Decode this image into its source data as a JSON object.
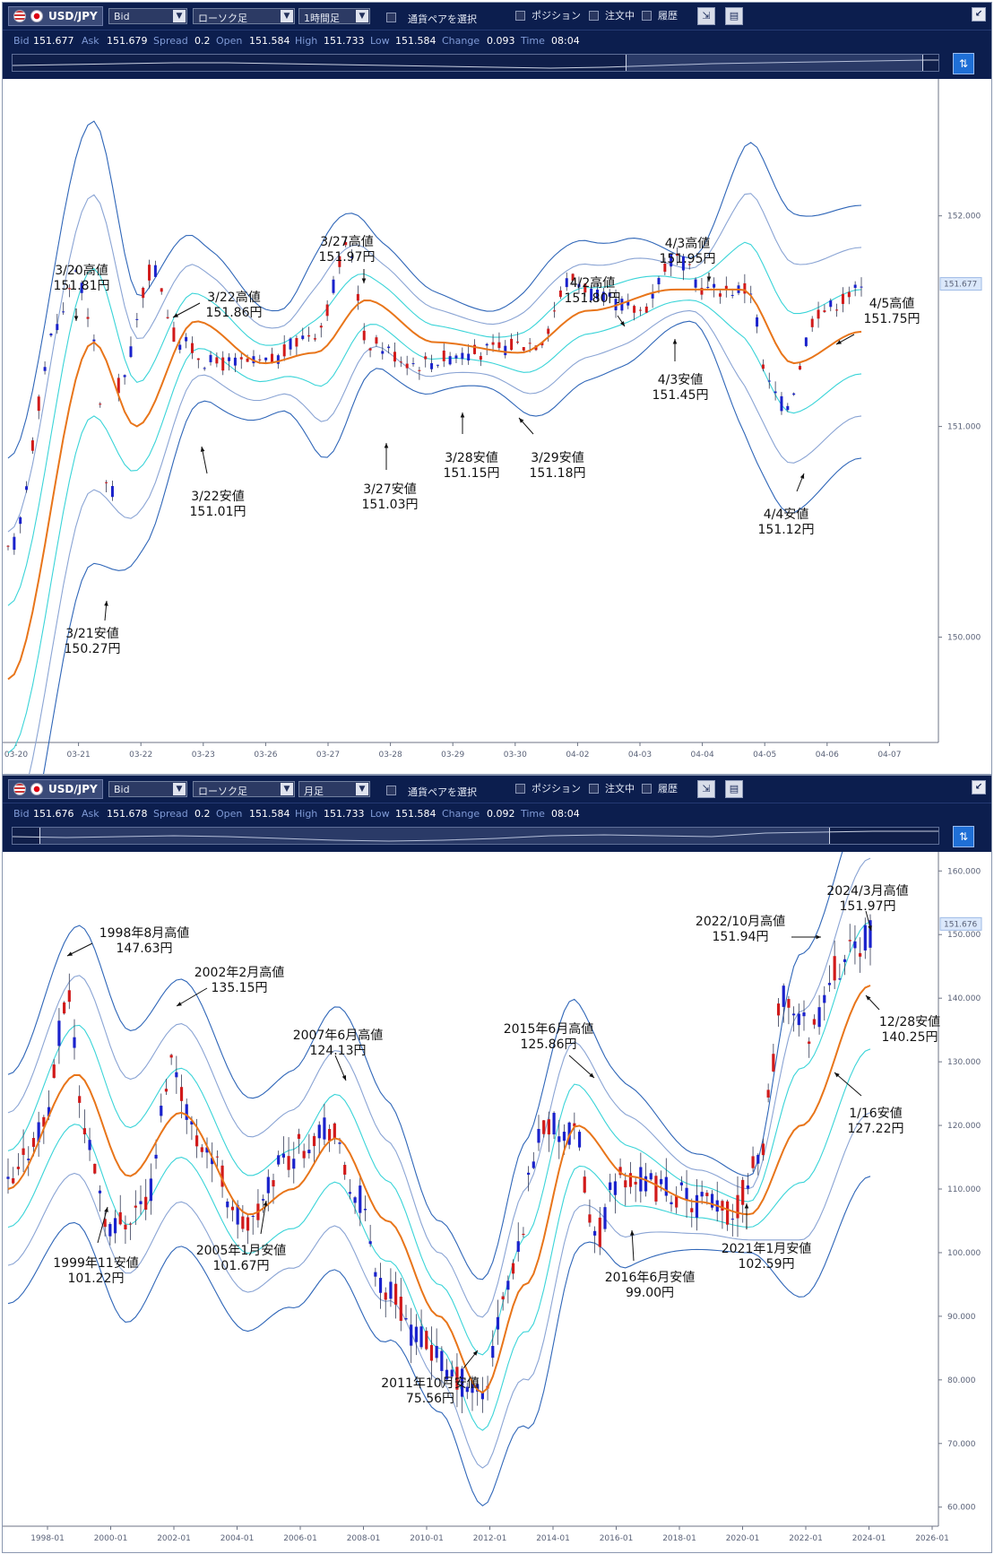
{
  "panels": [
    {
      "toolbar": {
        "pair": "USD/JPY",
        "price_type": "Bid",
        "chart_type": "ローソク足",
        "timeframe": "1時間足",
        "pair_select_label": "通貨ペアを選択",
        "position_label": "ポジション",
        "order_label": "注文中",
        "history_label": "履歴"
      },
      "quote": {
        "bid_label": "Bid",
        "bid": "151.677",
        "ask_label": "Ask",
        "ask": "151.679",
        "spread_label": "Spread",
        "spread": "0.2",
        "open_label": "Open",
        "open": "151.584",
        "high_label": "High",
        "high": "151.733",
        "low_label": "Low",
        "low": "151.584",
        "change_label": "Change",
        "change": "0.093",
        "time_label": "Time",
        "time": "08:04"
      },
      "chart_data": {
        "type": "candlestick",
        "instrument": "USD/JPY",
        "timeframe": "1時間足",
        "y_ticks": [
          "152.000",
          "151.000",
          "150.000"
        ],
        "y_tick_values": [
          152.0,
          151.0,
          150.0
        ],
        "ylim": [
          149.5,
          152.65
        ],
        "current_price_label": "151.677",
        "current_price": 151.677,
        "x_ticks": [
          "03-20",
          "03-21",
          "03-22",
          "03-23",
          "03-26",
          "03-27",
          "03-28",
          "03-29",
          "03-30",
          "04-02",
          "04-03",
          "04-04",
          "04-05",
          "04-06",
          "04-07"
        ],
        "annotations": [
          {
            "label": "3/20高値",
            "value": "151.81円"
          },
          {
            "label": "3/22高値",
            "value": "151.86円"
          },
          {
            "label": "3/27高値",
            "value": "151.97円"
          },
          {
            "label": "4/2高値",
            "value": "151.80円"
          },
          {
            "label": "4/3高値",
            "value": "151.95円"
          },
          {
            "label": "4/5高値",
            "value": "151.75円"
          },
          {
            "label": "3/21安値",
            "value": "150.27円"
          },
          {
            "label": "3/22安値",
            "value": "151.01円"
          },
          {
            "label": "3/27安値",
            "value": "151.03円"
          },
          {
            "label": "3/28安値",
            "value": "151.15円"
          },
          {
            "label": "3/29安値",
            "value": "151.18円"
          },
          {
            "label": "4/3安値",
            "value": "151.45円"
          },
          {
            "label": "4/4安値",
            "value": "151.12円"
          }
        ],
        "colors": {
          "up": "#d11a1a",
          "down": "#1a22cc",
          "ma": "#e8751a",
          "band1": "#3ad4d8",
          "band2": "#8aa4d4",
          "band3": "#2f66b8"
        }
      }
    },
    {
      "toolbar": {
        "pair": "USD/JPY",
        "price_type": "Bid",
        "chart_type": "ローソク足",
        "timeframe": "月足",
        "pair_select_label": "通貨ペアを選択",
        "position_label": "ポジション",
        "order_label": "注文中",
        "history_label": "履歴"
      },
      "quote": {
        "bid_label": "Bid",
        "bid": "151.676",
        "ask_label": "Ask",
        "ask": "151.678",
        "spread_label": "Spread",
        "spread": "0.2",
        "open_label": "Open",
        "open": "151.584",
        "high_label": "High",
        "high": "151.733",
        "low_label": "Low",
        "low": "151.584",
        "change_label": "Change",
        "change": "0.092",
        "time_label": "Time",
        "time": "08:04"
      },
      "chart_data": {
        "type": "candlestick",
        "instrument": "USD/JPY",
        "timeframe": "月足",
        "y_ticks": [
          "160.000",
          "150.000",
          "140.000",
          "130.000",
          "120.000",
          "110.000",
          "100.000",
          "90.000",
          "80.000",
          "70.000",
          "60.000"
        ],
        "y_tick_values": [
          160,
          150,
          140,
          130,
          120,
          110,
          100,
          90,
          80,
          70,
          60
        ],
        "ylim": [
          57,
          163
        ],
        "current_price_label": "151.676",
        "current_price": 151.676,
        "x_ticks": [
          "1998-01",
          "2000-01",
          "2002-01",
          "2004-01",
          "2006-01",
          "2008-01",
          "2010-01",
          "2012-01",
          "2014-01",
          "2016-01",
          "2018-01",
          "2020-01",
          "2022-01",
          "2024-01",
          "2026-01"
        ],
        "annotations": [
          {
            "label": "1998年8月高値",
            "value": "147.63円"
          },
          {
            "label": "2002年2月高値",
            "value": "135.15円"
          },
          {
            "label": "2007年6月高値",
            "value": "124.13円"
          },
          {
            "label": "2015年6月高値",
            "value": "125.86円"
          },
          {
            "label": "2022/10月高値",
            "value": "151.94円"
          },
          {
            "label": "2024/3月高値",
            "value": "151.97円"
          },
          {
            "label": "12/28安値",
            "value": "140.25円"
          },
          {
            "label": "1/16安値",
            "value": "127.22円"
          },
          {
            "label": "1999年11安値",
            "value": "101.22円"
          },
          {
            "label": "2005年1月安値",
            "value": "101.67円"
          },
          {
            "label": "2011年10月安値",
            "value": "75.56円"
          },
          {
            "label": "2016年6月安値",
            "value": "99.00円"
          },
          {
            "label": "2021年1月安値",
            "value": "102.59円"
          }
        ],
        "colors": {
          "up": "#d11a1a",
          "down": "#1a22cc",
          "ma": "#e8751a",
          "band1": "#3ad4d8",
          "band2": "#8aa4d4",
          "band3": "#2f66b8"
        }
      }
    }
  ]
}
